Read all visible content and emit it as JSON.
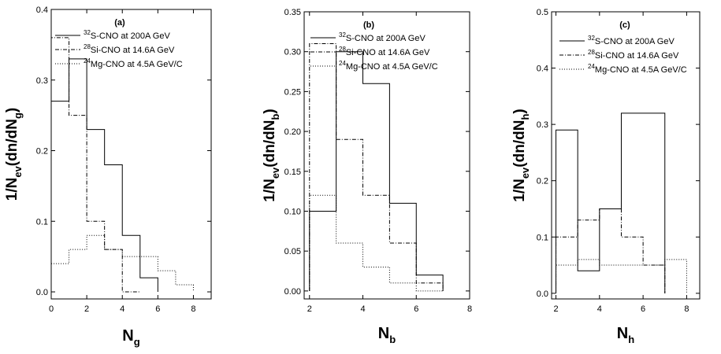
{
  "figure": {
    "background": "#ffffff"
  },
  "chart_data": [
    {
      "type": "bar",
      "panel_label": "(a)",
      "xlabel": {
        "base": "N",
        "sub": "g"
      },
      "ylabel": {
        "parts": [
          [
            "1/N",
            ""
          ],
          [
            "ev",
            "sub"
          ],
          [
            "(dn/dN",
            ""
          ],
          [
            "g",
            "sub"
          ],
          [
            ")",
            ""
          ]
        ]
      },
      "xlim": [
        0,
        9
      ],
      "ylim": [
        -0.01,
        0.4
      ],
      "x_ticks": [
        0,
        2,
        4,
        6,
        8
      ],
      "x_tick_labels": [
        "0",
        "2",
        "4",
        "6",
        "8"
      ],
      "y_ticks": [
        0.0,
        0.1,
        0.2,
        0.3,
        0.4
      ],
      "y_tick_labels": [
        "0.0",
        "0.1",
        "0.2",
        "0.3",
        "0.4"
      ],
      "legend_position": "top-right",
      "series": [
        {
          "name": "S-CNO at 200A GeV",
          "sup": "32",
          "style": "solid",
          "bin_edges": [
            0,
            1,
            2,
            3,
            4,
            5,
            6
          ],
          "values": [
            0.27,
            0.33,
            0.23,
            0.18,
            0.08,
            0.02
          ]
        },
        {
          "name": "Si-CNO at 14.6A GeV",
          "sup": "28",
          "style": "dashdot",
          "bin_edges": [
            0,
            1,
            2,
            3,
            4,
            5
          ],
          "values": [
            0.36,
            0.25,
            0.1,
            0.06,
            0.0
          ]
        },
        {
          "name": "Mg-CNO at 4.5A GeV/C",
          "sup": "24",
          "style": "dotted",
          "bin_edges": [
            0,
            1,
            2,
            3,
            4,
            5,
            6,
            7,
            8
          ],
          "values": [
            0.04,
            0.06,
            0.08,
            0.06,
            0.05,
            0.05,
            0.03,
            0.01
          ]
        }
      ]
    },
    {
      "type": "bar",
      "panel_label": "(b)",
      "xlabel": {
        "base": "N",
        "sub": "b"
      },
      "ylabel": {
        "parts": [
          [
            "1/N",
            ""
          ],
          [
            "ev",
            "sub"
          ],
          [
            "(dn/dN",
            ""
          ],
          [
            "b",
            "sub"
          ],
          [
            ")",
            ""
          ]
        ]
      },
      "xlim": [
        1.8,
        8.0
      ],
      "ylim": [
        -0.01,
        0.35
      ],
      "x_ticks": [
        2,
        4,
        6,
        8
      ],
      "x_tick_labels": [
        "2",
        "4",
        "6",
        "8"
      ],
      "y_ticks": [
        0.0,
        0.05,
        0.1,
        0.15,
        0.2,
        0.25,
        0.3,
        0.35
      ],
      "y_tick_labels": [
        "0.00",
        "0.05",
        "0.10",
        "0.15",
        "0.20",
        "0.25",
        "0.30",
        "0.35"
      ],
      "legend_position": "top-right",
      "series": [
        {
          "name": "S-CNO at 200A GeV",
          "sup": "32",
          "style": "solid",
          "bin_edges": [
            2,
            3,
            4,
            5,
            6,
            7
          ],
          "values": [
            0.1,
            0.3,
            0.26,
            0.11,
            0.02
          ]
        },
        {
          "name": "Si-CNO at 14.6A GeV",
          "sup": "28",
          "style": "dashdot",
          "bin_edges": [
            2,
            3,
            4,
            5,
            6,
            7
          ],
          "values": [
            0.31,
            0.19,
            0.12,
            0.06,
            0.01
          ]
        },
        {
          "name": "Mg-CNO at 4.5A GeV/C",
          "sup": "24",
          "style": "dotted",
          "bin_edges": [
            2,
            3,
            4,
            5,
            6,
            7
          ],
          "values": [
            0.12,
            0.06,
            0.03,
            0.01,
            0.0
          ]
        }
      ]
    },
    {
      "type": "bar",
      "panel_label": "(c)",
      "xlabel": {
        "base": "N",
        "sub": "h"
      },
      "ylabel": {
        "parts": [
          [
            "1/N",
            ""
          ],
          [
            "ev",
            "sub"
          ],
          [
            "(dn/dN",
            ""
          ],
          [
            "h",
            "sub"
          ],
          [
            ")",
            ""
          ]
        ]
      },
      "xlim": [
        1.8,
        8.6
      ],
      "ylim": [
        -0.01,
        0.5
      ],
      "x_ticks": [
        2,
        4,
        6,
        8
      ],
      "x_tick_labels": [
        "2",
        "4",
        "6",
        "8"
      ],
      "y_ticks": [
        0.0,
        0.1,
        0.2,
        0.3,
        0.4,
        0.5
      ],
      "y_tick_labels": [
        "0.0",
        "0.1",
        "0.2",
        "0.3",
        "0.4",
        "0.5"
      ],
      "legend_position": "top-right",
      "series": [
        {
          "name": "S-CNO at 200A GeV",
          "sup": "32",
          "style": "solid",
          "bin_edges": [
            2,
            3,
            4,
            5,
            7
          ],
          "values": [
            0.29,
            0.04,
            0.15,
            0.32
          ]
        },
        {
          "name": "Si-CNO at 14.6A GeV",
          "sup": "28",
          "style": "dashdot",
          "bin_edges": [
            2,
            3,
            4,
            5,
            6,
            7
          ],
          "values": [
            0.1,
            0.13,
            0.15,
            0.1,
            0.05
          ]
        },
        {
          "name": "Mg-CNO at 4.5A GeV/C",
          "sup": "24",
          "style": "dotted",
          "bin_edges": [
            2,
            3,
            4,
            5,
            6,
            7,
            8
          ],
          "values": [
            0.05,
            0.06,
            0.05,
            0.05,
            0.05,
            0.06
          ]
        }
      ]
    }
  ]
}
